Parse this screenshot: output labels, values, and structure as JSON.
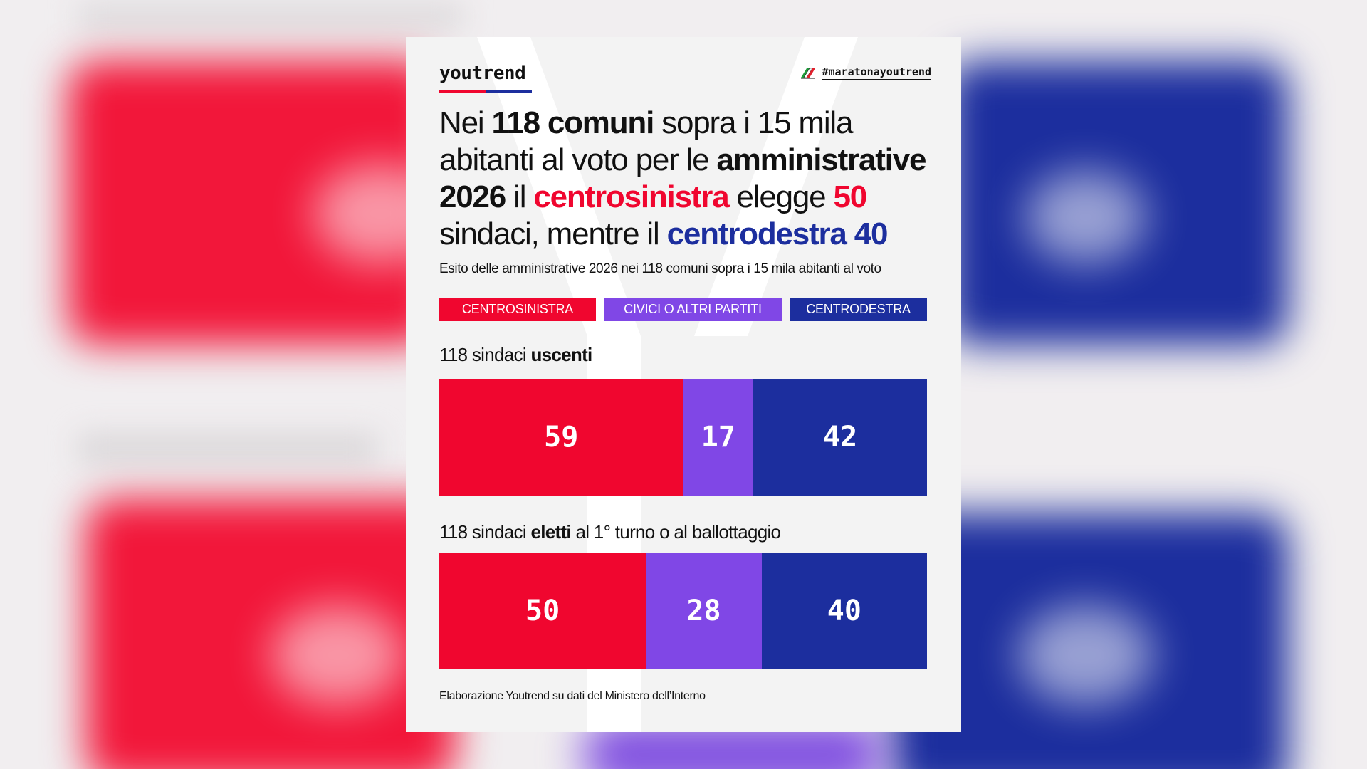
{
  "brand": {
    "logo_text": "youtrend",
    "hashtag": "#maratonayoutrend",
    "logo_colors": [
      "#f0062f",
      "#1c2e9e"
    ]
  },
  "headline": {
    "p1": "Nei ",
    "b1": "118 comuni",
    "p2": " sopra i 15 mila abitanti al voto per le ",
    "b2": "amministrative 2026",
    "p3": " il ",
    "r1": "centrosinistra",
    "p4": " elegge ",
    "r2": "50",
    "p5": " sindaci, mentre il ",
    "bl1": "centrodestra 40"
  },
  "subtitle": "Esito delle amministrative 2026 nei 118 comuni sopra i 15 mila abitanti al voto",
  "legend": [
    {
      "label": "CENTROSINISTRA",
      "color": "#f0062f"
    },
    {
      "label": "CIVICI O ALTRI PARTITI",
      "color": "#8047e6"
    },
    {
      "label": "CENTRODESTRA",
      "color": "#1c2e9e"
    }
  ],
  "chart_data": {
    "type": "bar",
    "orientation": "horizontal-stacked",
    "series_names": [
      "CENTROSINISTRA",
      "CIVICI O ALTRI PARTITI",
      "CENTRODESTRA"
    ],
    "colors": [
      "#f0062f",
      "#8047e6",
      "#1c2e9e"
    ],
    "rows": [
      {
        "label_pre": "118 sindaci ",
        "label_bold": "uscenti",
        "label_post": "",
        "total": 118,
        "values": [
          59,
          17,
          42
        ]
      },
      {
        "label_pre": "118 sindaci ",
        "label_bold": "eletti",
        "label_post": " al 1° turno o al ballottaggio",
        "total": 118,
        "values": [
          50,
          28,
          40
        ]
      }
    ]
  },
  "source": "Elaborazione Youtrend su dati del Ministero dell’Interno"
}
